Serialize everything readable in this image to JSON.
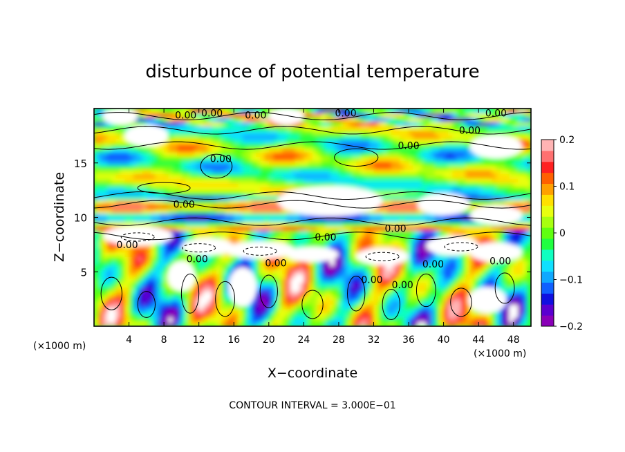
{
  "chart_data": {
    "type": "heatmap",
    "title": "disturbunce of potential temperature",
    "xlabel": "X−coordinate",
    "ylabel": "Z−coordinate",
    "x_unit": "(×1000 m)",
    "y_unit": "(×1000 m)",
    "footer": "CONTOUR INTERVAL = 3.000E−01",
    "xlim": [
      0,
      50
    ],
    "ylim": [
      0,
      20
    ],
    "x_ticks": [
      {
        "value": 4,
        "label": "4"
      },
      {
        "value": 8,
        "label": "8"
      },
      {
        "value": 12,
        "label": "12"
      },
      {
        "value": 16,
        "label": "16"
      },
      {
        "value": 20,
        "label": "20"
      },
      {
        "value": 24,
        "label": "24"
      },
      {
        "value": 28,
        "label": "28"
      },
      {
        "value": 32,
        "label": "32"
      },
      {
        "value": 36,
        "label": "36"
      },
      {
        "value": 40,
        "label": "40"
      },
      {
        "value": 44,
        "label": "44"
      },
      {
        "value": 48,
        "label": "48"
      }
    ],
    "y_ticks": [
      {
        "value": 5,
        "label": "5"
      },
      {
        "value": 10,
        "label": "10"
      },
      {
        "value": 15,
        "label": "15"
      }
    ],
    "colorbar": {
      "range": [
        -0.2,
        0.2
      ],
      "ticks": [
        {
          "value": 0.2,
          "label": "0.2"
        },
        {
          "value": 0.1,
          "label": "0.1"
        },
        {
          "value": 0,
          "label": "0"
        },
        {
          "value": -0.1,
          "label": "−0.1"
        },
        {
          "value": -0.2,
          "label": "−0.2"
        }
      ],
      "colors": [
        "#8a00b8",
        "#5a00d0",
        "#1010e0",
        "#1060ff",
        "#10a8ff",
        "#10e0ff",
        "#10ffc0",
        "#20ff40",
        "#60ff10",
        "#a8ff10",
        "#e8ff10",
        "#ffe000",
        "#ffa000",
        "#ff6000",
        "#ff2020",
        "#ff7070",
        "#ffb4b4"
      ]
    },
    "contour_labels": [
      {
        "x": 10.5,
        "z": 19.4,
        "text": "0.00"
      },
      {
        "x": 13.5,
        "z": 19.6,
        "text": "0.00"
      },
      {
        "x": 18.5,
        "z": 19.4,
        "text": "0.00"
      },
      {
        "x": 28.8,
        "z": 19.6,
        "text": "0.00"
      },
      {
        "x": 46.0,
        "z": 19.6,
        "text": "0.00"
      },
      {
        "x": 43.0,
        "z": 18.0,
        "text": "0.00"
      },
      {
        "x": 36.0,
        "z": 16.6,
        "text": "0.00"
      },
      {
        "x": 14.5,
        "z": 15.4,
        "text": "0.00"
      },
      {
        "x": 10.3,
        "z": 11.2,
        "text": "0.00"
      },
      {
        "x": 26.5,
        "z": 8.2,
        "text": "0.00"
      },
      {
        "x": 34.5,
        "z": 9.0,
        "text": "0.00"
      },
      {
        "x": 11.8,
        "z": 6.2,
        "text": "0.00"
      },
      {
        "x": 20.8,
        "z": 5.8,
        "text": "0.00"
      },
      {
        "x": 3.8,
        "z": 7.5,
        "text": "0.00"
      },
      {
        "x": 31.8,
        "z": 4.3,
        "text": "0.00"
      },
      {
        "x": 35.3,
        "z": 3.8,
        "text": "0.00"
      },
      {
        "x": 38.8,
        "z": 5.7,
        "text": "0.00"
      },
      {
        "x": 46.5,
        "z": 6.0,
        "text": "0.00"
      }
    ]
  }
}
